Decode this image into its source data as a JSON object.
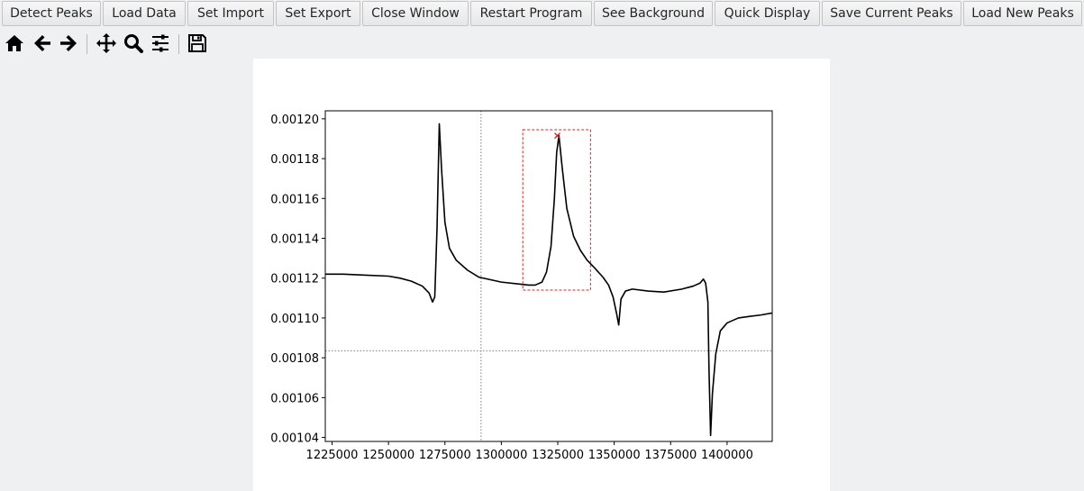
{
  "buttons": {
    "detect_peaks": "Detect Peaks",
    "load_data": "Load Data",
    "set_import": "Set Import",
    "set_export": "Set Export",
    "close_window": "Close Window",
    "restart_program": "Restart Program",
    "see_background": "See Background",
    "quick_display": "Quick Display",
    "save_current_peaks": "Save Current Peaks",
    "load_new_peaks": "Load New Peaks"
  },
  "toolbar": {
    "icons": [
      "home-icon",
      "back-arrow-icon",
      "forward-arrow-icon",
      "pan-icon",
      "zoom-icon",
      "configure-subplots-icon",
      "save-figure-icon"
    ]
  },
  "colors": {
    "window_bg": "#eff0f1",
    "line": "#000000",
    "selection_box": "#d62728",
    "peak_marker": "#d62728",
    "crosshair": "#808080"
  },
  "chart_data": {
    "type": "line",
    "title": "",
    "xlabel": "",
    "ylabel": "",
    "xlim": [
      1222000,
      1420000
    ],
    "ylim": [
      0.001038,
      0.001204
    ],
    "xticks": [
      1225000,
      1250000,
      1275000,
      1300000,
      1325000,
      1350000,
      1375000,
      1400000
    ],
    "xtick_labels": [
      "1225000",
      "1250000",
      "1275000",
      "1300000",
      "1325000",
      "1350000",
      "1375000",
      "1400000"
    ],
    "yticks": [
      0.00104,
      0.00106,
      0.00108,
      0.0011,
      0.00112,
      0.00114,
      0.00116,
      0.00118,
      0.0012
    ],
    "ytick_labels": [
      "0.00104",
      "0.00106",
      "0.00108",
      "0.00110",
      "0.00112",
      "0.00114",
      "0.00116",
      "0.00118",
      "0.00120"
    ],
    "grid": false,
    "series": [
      {
        "x": [
          1222000,
          1230000,
          1240000,
          1250000,
          1255000,
          1260000,
          1265000,
          1268000,
          1269500,
          1270500,
          1271500,
          1272500,
          1273500,
          1275000,
          1277000,
          1280000,
          1285000,
          1290000,
          1300000,
          1308000,
          1312000,
          1315000,
          1318000,
          1320000,
          1322000,
          1323500,
          1324500,
          1325500,
          1327000,
          1329000,
          1332000,
          1335000,
          1338000,
          1341000,
          1345000,
          1347500,
          1349500,
          1351000,
          1352000,
          1353000,
          1355000,
          1358000,
          1365000,
          1372000,
          1380000,
          1385000,
          1388000,
          1389500,
          1390500,
          1391500,
          1392000,
          1392700,
          1393500,
          1395000,
          1397000,
          1400000,
          1405000,
          1410000,
          1415000,
          1420000
        ],
        "y": [
          0.001122,
          0.001122,
          0.0011215,
          0.001121,
          0.00112,
          0.0011185,
          0.001116,
          0.0011125,
          0.001108,
          0.0011105,
          0.001145,
          0.0011975,
          0.001175,
          0.001148,
          0.001135,
          0.001129,
          0.001124,
          0.0011205,
          0.001118,
          0.001117,
          0.0011165,
          0.0011165,
          0.001118,
          0.001123,
          0.001136,
          0.00116,
          0.001183,
          0.0011915,
          0.001175,
          0.001155,
          0.001141,
          0.001134,
          0.001129,
          0.0011255,
          0.0011205,
          0.0011165,
          0.0011105,
          0.0011025,
          0.0010965,
          0.0011095,
          0.0011135,
          0.0011145,
          0.0011135,
          0.001113,
          0.0011145,
          0.001116,
          0.0011175,
          0.0011195,
          0.0011175,
          0.001108,
          0.0010735,
          0.001041,
          0.001062,
          0.001082,
          0.0010935,
          0.0010975,
          0.0011,
          0.0011008,
          0.0011015,
          0.0011025
        ]
      }
    ],
    "selection_box": {
      "x": [
        1309500,
        1339500
      ],
      "y": [
        0.001114,
        0.0011945
      ]
    },
    "peak_marker": {
      "x": 1324800,
      "y": 0.0011915
    },
    "crosshair": {
      "x": 1291000,
      "y": 0.0010835
    }
  }
}
